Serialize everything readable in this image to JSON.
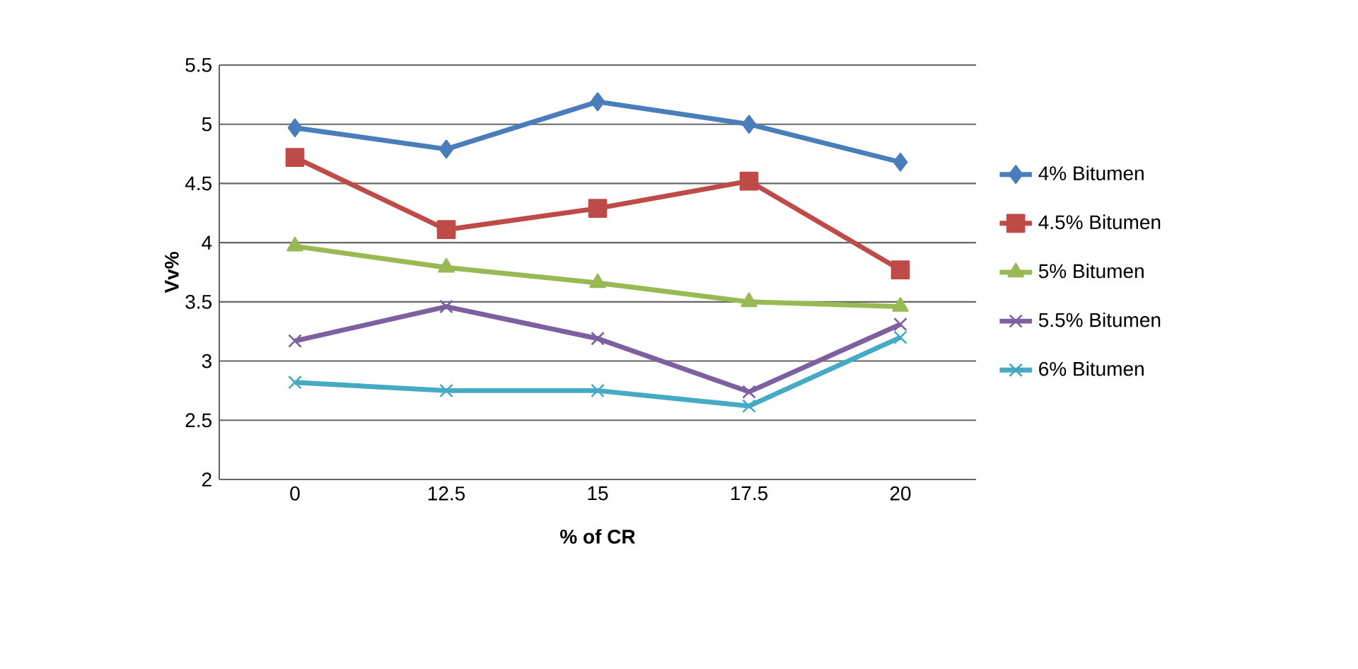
{
  "chart_data": {
    "type": "line",
    "xlabel": "% of CR",
    "ylabel": "Vv%",
    "categories": [
      "0",
      "12.5",
      "15",
      "17.5",
      "20"
    ],
    "series": [
      {
        "name": "4% Bitumen",
        "color": "#4a7ebb",
        "marker": "diamond",
        "values": [
          4.97,
          4.79,
          5.19,
          5.0,
          4.68
        ]
      },
      {
        "name": "4.5% Bitumen",
        "color": "#be4b48",
        "marker": "square",
        "values": [
          4.72,
          4.11,
          4.29,
          4.52,
          3.77
        ]
      },
      {
        "name": "5% Bitumen",
        "color": "#98b954",
        "marker": "triangle",
        "values": [
          3.97,
          3.79,
          3.66,
          3.5,
          3.46
        ]
      },
      {
        "name": "5.5% Bitumen",
        "color": "#7d60a0",
        "marker": "cross",
        "values": [
          3.17,
          3.46,
          3.19,
          2.74,
          3.31
        ]
      },
      {
        "name": "6% Bitumen",
        "color": "#46aac5",
        "marker": "cross",
        "values": [
          2.82,
          2.75,
          2.75,
          2.62,
          3.2
        ]
      }
    ],
    "ylim": [
      2,
      5.5
    ],
    "yticks": [
      2,
      2.5,
      3,
      3.5,
      4,
      4.5,
      5,
      5.5
    ],
    "grid": "y",
    "legend": "right",
    "line_style": "solid"
  }
}
